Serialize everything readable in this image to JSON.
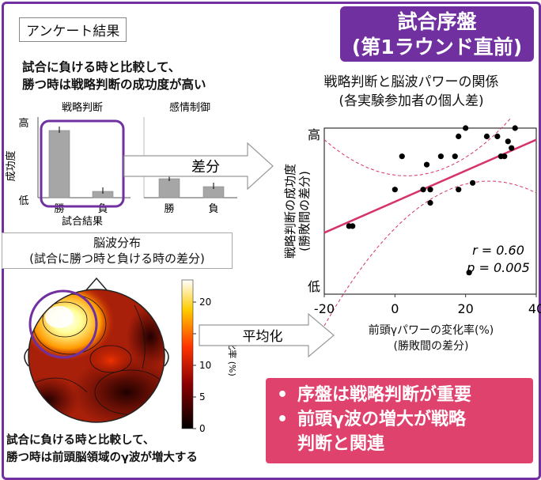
{
  "title": {
    "line1": "試合序盤",
    "line2": "(第1ラウンド直前)"
  },
  "survey": {
    "label": "アンケート結果",
    "finding_line1": "試合に負ける時と比較して、",
    "finding_line2": "勝つ時は戦略判断の成功度が高い",
    "panel1_title": "戦略判断",
    "panel2_title": "感情制御",
    "y_label": "成功度",
    "y_high": "高",
    "y_low": "低",
    "x_label": "試合結果",
    "win_label": "勝",
    "lose_label": "負",
    "bars": {
      "strategy": {
        "win": 0.85,
        "lose": 0.08
      },
      "emotion": {
        "win": 0.24,
        "lose": 0.14
      }
    }
  },
  "arrow_diff_label": "差分",
  "arrow_avg_label": "平均化",
  "scatter": {
    "title_line1": "戦略判断と脳波パワーの関係",
    "title_line2": "(各実験参加者の個人差)",
    "y_label_line1": "戦略判断の成功度",
    "y_label_line2": "(勝敗間の差分)",
    "y_high": "高",
    "y_low": "低",
    "x_ticks": [
      "-20",
      "0",
      "20",
      "40"
    ],
    "x_label_line1": "前頭γパワーの変化率(%)",
    "x_label_line2": "(勝敗間の差分)",
    "r_text": "r = 0.60",
    "p_text": "p = 0.005",
    "points": [
      [
        -13,
        0.41
      ],
      [
        -12,
        0.41
      ],
      [
        0,
        0.63
      ],
      [
        2,
        0.83
      ],
      [
        9,
        0.78
      ],
      [
        13,
        0.83
      ],
      [
        8,
        0.63
      ],
      [
        10,
        0.63
      ],
      [
        17,
        0.83
      ],
      [
        18,
        0.95
      ],
      [
        20,
        1.0
      ],
      [
        26,
        0.95
      ],
      [
        29,
        0.95
      ],
      [
        30,
        0.83
      ],
      [
        32,
        0.92
      ],
      [
        33,
        0.88
      ],
      [
        34,
        1.0
      ],
      [
        10,
        0.55
      ],
      [
        18,
        0.63
      ],
      [
        22,
        0.67
      ],
      [
        21,
        0.13
      ],
      [
        31,
        0.83
      ]
    ],
    "x_range": [
      -20,
      40
    ],
    "regression": {
      "x0": -20,
      "y0": 0.37,
      "x1": 40,
      "y1": 0.93
    }
  },
  "brain": {
    "title_line1": "脳波分布",
    "title_line2": "(試合に勝つ時と負ける時の差分)",
    "colorbar_ticks": [
      "20",
      "15",
      "10",
      "5",
      "0"
    ],
    "colorbar_label": "変化率 (%)",
    "finding_line1": "試合に負ける時と比較して、",
    "finding_line2": "勝つ時は前頭脳領域のγ波が増大する"
  },
  "conclusions": [
    "序盤は戦略判断が重要",
    "前頭γ波の増大が戦略",
    "判断と関連"
  ],
  "colors": {
    "purple": "#7030a0",
    "pink": "#e0426e",
    "regression": "#d6336c"
  }
}
